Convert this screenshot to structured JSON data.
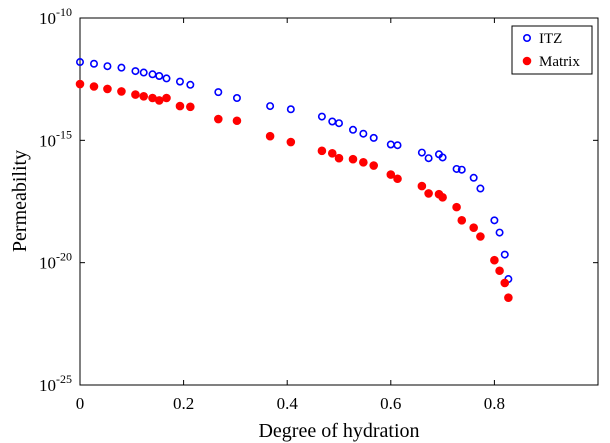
{
  "chart_data": {
    "type": "scatter",
    "xlabel": "Degree of hydration",
    "ylabel": "Permeability",
    "xlim": [
      0,
      1
    ],
    "ylim_exponent": [
      -25,
      -10
    ],
    "y_scale": "log",
    "x_ticks": [
      {
        "value": 0,
        "label": "0"
      },
      {
        "value": 0.2,
        "label": "0.2"
      },
      {
        "value": 0.4,
        "label": "0.4"
      },
      {
        "value": 0.6,
        "label": "0.6"
      },
      {
        "value": 0.8,
        "label": "0.8"
      }
    ],
    "y_ticks": [
      {
        "exponent": -10,
        "base": "10",
        "power": "-10"
      },
      {
        "exponent": -15,
        "base": "10",
        "power": "-15"
      },
      {
        "exponent": -20,
        "base": "10",
        "power": "-20"
      },
      {
        "exponent": -25,
        "base": "10",
        "power": "-25"
      }
    ],
    "grid": false,
    "legend_position": "top-right",
    "series": [
      {
        "name": "ITZ",
        "marker": "open-circle",
        "color": "#0000ff",
        "x": [
          0.0,
          0.027,
          0.053,
          0.08,
          0.107,
          0.123,
          0.14,
          0.153,
          0.167,
          0.193,
          0.213,
          0.267,
          0.303,
          0.367,
          0.407,
          0.467,
          0.487,
          0.5,
          0.527,
          0.547,
          0.567,
          0.6,
          0.613,
          0.66,
          0.673,
          0.693,
          0.7,
          0.727,
          0.737,
          0.76,
          0.773,
          0.8,
          0.81,
          0.82,
          0.827
        ],
        "y_log10": [
          -11.8,
          -11.87,
          -11.97,
          -12.03,
          -12.17,
          -12.23,
          -12.3,
          -12.37,
          -12.47,
          -12.6,
          -12.73,
          -13.03,
          -13.27,
          -13.6,
          -13.73,
          -14.03,
          -14.23,
          -14.3,
          -14.57,
          -14.73,
          -14.9,
          -15.17,
          -15.2,
          -15.5,
          -15.73,
          -15.57,
          -15.7,
          -16.17,
          -16.2,
          -16.53,
          -16.97,
          -18.27,
          -18.77,
          -19.67,
          -20.67
        ]
      },
      {
        "name": "Matrix",
        "marker": "filled-circle",
        "color": "#ff0000",
        "x": [
          0.0,
          0.027,
          0.053,
          0.08,
          0.107,
          0.123,
          0.14,
          0.153,
          0.167,
          0.193,
          0.213,
          0.267,
          0.303,
          0.367,
          0.407,
          0.467,
          0.487,
          0.5,
          0.527,
          0.547,
          0.567,
          0.6,
          0.613,
          0.66,
          0.673,
          0.693,
          0.7,
          0.727,
          0.737,
          0.76,
          0.773,
          0.8,
          0.81,
          0.82,
          0.827
        ],
        "y_log10": [
          -12.7,
          -12.8,
          -12.9,
          -13.0,
          -13.13,
          -13.2,
          -13.27,
          -13.37,
          -13.27,
          -13.6,
          -13.63,
          -14.13,
          -14.2,
          -14.83,
          -15.07,
          -15.43,
          -15.53,
          -15.73,
          -15.77,
          -15.9,
          -16.03,
          -16.4,
          -16.57,
          -16.87,
          -17.17,
          -17.2,
          -17.33,
          -17.73,
          -18.27,
          -18.57,
          -18.93,
          -19.9,
          -20.33,
          -20.83,
          -21.43
        ]
      }
    ]
  }
}
